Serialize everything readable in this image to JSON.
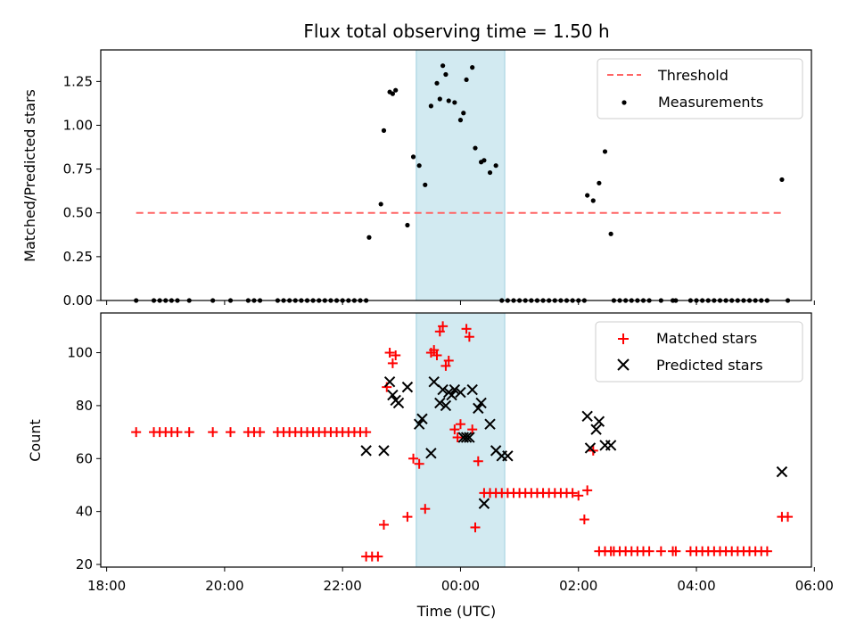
{
  "chart_data": {
    "title": "Flux total observing time = 1.50 h",
    "xlabel": "Time (UTC)",
    "x_unit": "hours from 00:00 UTC (negative = previous day)",
    "xlim": [
      -6.1,
      5.95
    ],
    "x_ticks": [
      {
        "value": -6,
        "label": "18:00"
      },
      {
        "value": -4,
        "label": "20:00"
      },
      {
        "value": -2,
        "label": "22:00"
      },
      {
        "value": 0,
        "label": "00:00"
      },
      {
        "value": 2,
        "label": "02:00"
      },
      {
        "value": 4,
        "label": "04:00"
      },
      {
        "value": 6,
        "label": "06:00"
      }
    ],
    "highlight_span": {
      "x": [
        -0.75,
        0.75
      ],
      "color": "#add8e6"
    },
    "panels": [
      {
        "type": "scatter",
        "ylabel": "Matched/Predicted stars",
        "ylim": [
          0,
          1.43
        ],
        "y_ticks": [
          "0.00",
          "0.25",
          "0.50",
          "0.75",
          "1.00",
          "1.25"
        ],
        "legend": {
          "position": "top-right",
          "entries": [
            "Threshold",
            "Measurements"
          ]
        },
        "series": [
          {
            "name": "Threshold",
            "kind": "dashed-line",
            "color": "#ff6666",
            "x": [
              -5.5,
              5.5
            ],
            "y": [
              0.5,
              0.5
            ]
          },
          {
            "name": "Measurements",
            "kind": "dot",
            "color": "#000000",
            "x": [
              -5.5,
              -5.2,
              -5.1,
              -5.0,
              -4.9,
              -4.8,
              -4.6,
              -4.2,
              -3.9,
              -3.6,
              -3.5,
              -3.4,
              -3.1,
              -3.0,
              -2.9,
              -2.8,
              -2.7,
              -2.6,
              -2.5,
              -2.4,
              -2.3,
              -2.2,
              -2.1,
              -2.0,
              -1.9,
              -1.8,
              -1.7,
              -1.6,
              -1.55,
              -1.35,
              -1.3,
              -1.2,
              -1.15,
              -1.1,
              -0.9,
              -0.8,
              -0.7,
              -0.6,
              -0.5,
              -0.4,
              -0.35,
              -0.3,
              -0.25,
              -0.2,
              -0.1,
              0.0,
              0.05,
              0.1,
              0.2,
              0.25,
              0.35,
              0.4,
              0.5,
              0.6,
              0.7,
              0.8,
              0.9,
              1.0,
              1.1,
              1.2,
              1.3,
              1.4,
              1.5,
              1.6,
              1.7,
              1.8,
              1.9,
              2.0,
              2.1,
              2.15,
              2.25,
              2.35,
              2.45,
              2.55,
              2.6,
              2.7,
              2.8,
              2.9,
              3.0,
              3.1,
              3.2,
              3.4,
              3.6,
              3.65,
              3.9,
              4.0,
              4.1,
              4.2,
              4.3,
              4.4,
              4.5,
              4.6,
              4.7,
              4.8,
              4.9,
              5.0,
              5.1,
              5.2,
              5.45,
              5.55
            ],
            "y": [
              0,
              0,
              0,
              0,
              0,
              0,
              0,
              0,
              0,
              0,
              0,
              0,
              0,
              0,
              0,
              0,
              0,
              0,
              0,
              0,
              0,
              0,
              0,
              0,
              0,
              0,
              0,
              0,
              0.36,
              0.55,
              0.97,
              1.19,
              1.18,
              1.2,
              0.43,
              0.82,
              0.77,
              0.66,
              1.11,
              1.24,
              1.15,
              1.34,
              1.29,
              1.14,
              1.13,
              1.03,
              1.07,
              1.26,
              1.33,
              0.87,
              0.79,
              0.8,
              0.73,
              0.77,
              0,
              0,
              0,
              0,
              0,
              0,
              0,
              0,
              0,
              0,
              0,
              0,
              0,
              0,
              0,
              0.6,
              0.57,
              0.67,
              0.85,
              0.38,
              0,
              0,
              0,
              0,
              0,
              0,
              0,
              0,
              0,
              0,
              0,
              0,
              0,
              0,
              0,
              0,
              0,
              0,
              0,
              0,
              0,
              0,
              0,
              0,
              0.69,
              0
            ]
          }
        ]
      },
      {
        "type": "scatter",
        "ylabel": "Count",
        "ylim": [
          19,
          115
        ],
        "y_ticks": [
          "20",
          "40",
          "60",
          "80",
          "100"
        ],
        "legend": {
          "position": "top-right",
          "entries": [
            "Matched stars",
            "Predicted stars"
          ]
        },
        "series": [
          {
            "name": "Matched stars",
            "kind": "plus",
            "color": "#ff0000",
            "x": [
              -5.5,
              -5.2,
              -5.1,
              -5.0,
              -4.9,
              -4.8,
              -4.6,
              -4.2,
              -3.9,
              -3.6,
              -3.5,
              -3.4,
              -3.1,
              -3.0,
              -2.9,
              -2.8,
              -2.7,
              -2.6,
              -2.5,
              -2.4,
              -2.3,
              -2.2,
              -2.1,
              -2.0,
              -1.9,
              -1.8,
              -1.7,
              -1.6,
              -1.6,
              -1.5,
              -1.4,
              -1.3,
              -1.25,
              -1.2,
              -1.15,
              -1.1,
              -0.9,
              -0.8,
              -0.7,
              -0.6,
              -0.5,
              -0.45,
              -0.4,
              -0.35,
              -0.3,
              -0.25,
              -0.2,
              -0.1,
              -0.05,
              0.0,
              0.1,
              0.15,
              0.2,
              0.25,
              0.3,
              0.4,
              0.5,
              0.6,
              0.7,
              0.8,
              0.9,
              1.0,
              1.1,
              1.2,
              1.3,
              1.4,
              1.5,
              1.6,
              1.7,
              1.8,
              1.9,
              2.0,
              2.1,
              2.15,
              2.25,
              2.35,
              2.45,
              2.55,
              2.6,
              2.7,
              2.8,
              2.9,
              3.0,
              3.1,
              3.2,
              3.4,
              3.6,
              3.65,
              3.9,
              4.0,
              4.1,
              4.2,
              4.3,
              4.4,
              4.5,
              4.6,
              4.7,
              4.8,
              4.9,
              5.0,
              5.1,
              5.2,
              5.45,
              5.55
            ],
            "y": [
              70,
              70,
              70,
              70,
              70,
              70,
              70,
              70,
              70,
              70,
              70,
              70,
              70,
              70,
              70,
              70,
              70,
              70,
              70,
              70,
              70,
              70,
              70,
              70,
              70,
              70,
              70,
              70,
              23,
              23,
              23,
              35,
              87,
              100,
              96,
              99,
              38,
              60,
              58,
              41,
              100,
              101,
              99,
              108,
              110,
              95,
              97,
              71,
              68,
              73,
              109,
              106,
              71,
              34,
              59,
              47,
              47,
              47,
              47,
              47,
              47,
              47,
              47,
              47,
              47,
              47,
              47,
              47,
              47,
              47,
              47,
              46,
              37,
              48,
              63,
              25,
              25,
              25,
              25,
              25,
              25,
              25,
              25,
              25,
              25,
              25,
              25,
              25,
              25,
              25,
              25,
              25,
              25,
              25,
              25,
              25,
              25,
              25,
              25,
              25,
              25,
              25,
              38,
              38
            ]
          },
          {
            "name": "Predicted stars",
            "kind": "cross",
            "color": "#000000",
            "x": [
              -1.6,
              -1.3,
              -1.2,
              -1.15,
              -1.1,
              -1.05,
              -0.9,
              -0.7,
              -0.65,
              -0.5,
              -0.45,
              -0.35,
              -0.3,
              -0.25,
              -0.2,
              -0.15,
              -0.1,
              0.0,
              0.05,
              0.1,
              0.15,
              0.2,
              0.3,
              0.35,
              0.4,
              0.5,
              0.6,
              0.7,
              0.8,
              2.15,
              2.2,
              2.3,
              2.35,
              2.45,
              2.55,
              5.45
            ],
            "y": [
              63,
              63,
              89,
              84,
              82,
              81,
              87,
              73,
              75,
              62,
              89,
              81,
              86,
              80,
              85,
              84,
              86,
              85,
              68,
              68,
              68,
              86,
              79,
              81,
              43,
              73,
              63,
              61,
              61,
              76,
              64,
              71,
              74,
              65,
              65,
              55
            ]
          }
        ]
      }
    ]
  }
}
